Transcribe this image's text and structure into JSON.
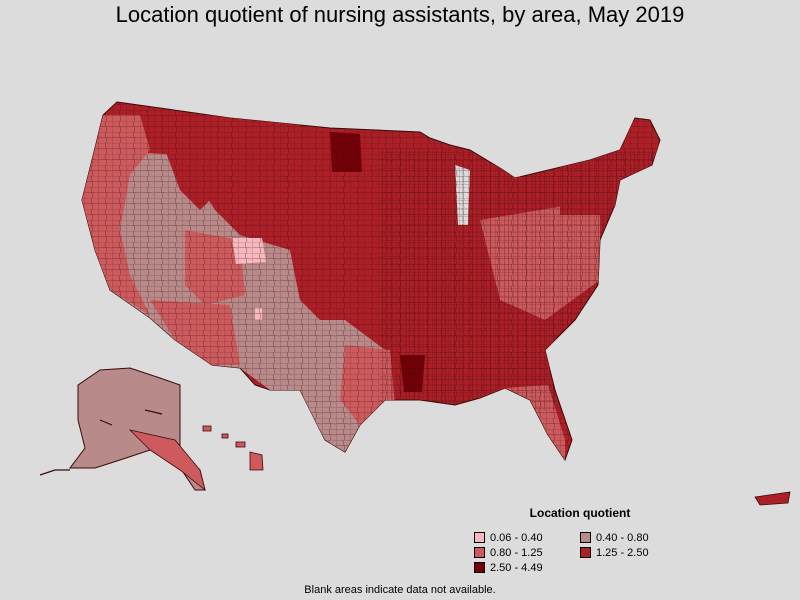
{
  "title": "Location quotient of nursing assistants, by area, May 2019",
  "legend": {
    "title": "Location quotient",
    "items": [
      {
        "label": "0.06 - 0.40",
        "color": "#f7b9bf"
      },
      {
        "label": "0.40 - 0.80",
        "color": "#b88a8a"
      },
      {
        "label": "0.80 - 1.25",
        "color": "#cd5b5e"
      },
      {
        "label": "1.25 - 2.50",
        "color": "#ac1f27"
      },
      {
        "label": "2.50 - 4.49",
        "color": "#720006"
      }
    ]
  },
  "footnote": "Blank areas indicate data not available.",
  "colors": {
    "background": "#dcdcdc",
    "border": "#5a2a2a"
  }
}
